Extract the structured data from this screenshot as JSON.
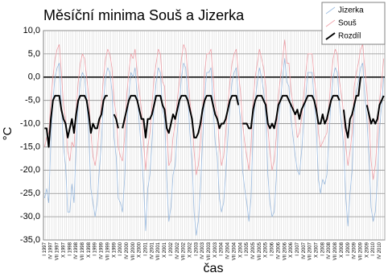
{
  "chart_data": {
    "type": "line",
    "title": "Měsíční minima Souš a Jizerka",
    "x_label": "čas",
    "y_label": "°C",
    "categories": [
      "I 1997",
      null,
      null,
      "IV 1997",
      null,
      null,
      "VII 1997",
      null,
      null,
      "X 1997",
      null,
      null,
      "I 1998",
      null,
      null,
      "IV 1998",
      null,
      null,
      "VII 1998",
      null,
      null,
      "X 1998",
      null,
      null,
      "I 1999",
      null,
      null,
      "IV 1999",
      null,
      null,
      "VII 1999",
      null,
      null,
      "X 1999",
      null,
      null,
      "I 2000",
      null,
      null,
      "IV 2000",
      null,
      null,
      "VII 2000",
      null,
      null,
      "X 2000",
      null,
      null,
      "I 2001",
      null,
      null,
      "IV 2001",
      null,
      null,
      "VII 2001",
      null,
      null,
      "X 2001",
      null,
      null,
      "I 2002",
      null,
      null,
      "IV 2002",
      null,
      null,
      "VII 2002",
      null,
      null,
      "X 2002",
      null,
      null,
      "I 2003",
      null,
      null,
      "IV 2003",
      null,
      null,
      "VII 2003",
      null,
      null,
      "X 2003",
      null,
      null,
      "I 2004",
      null,
      null,
      "IV 2004",
      null,
      null,
      "VII 2004",
      null,
      null,
      "X 2004",
      null,
      null,
      "I 2005",
      null,
      null,
      "IV 2005",
      null,
      null,
      "VII 2005",
      null,
      null,
      "X 2005",
      null,
      null,
      "I 2006",
      null,
      null,
      "IV 2006",
      null,
      null,
      "VII 2006",
      null,
      null,
      "X 2006",
      null,
      null,
      "I 2007",
      null,
      null,
      "IV 2007",
      null,
      null,
      "VII 2007",
      null,
      null,
      "X 2007",
      null,
      null,
      "I 2008",
      null,
      null,
      "IV 2008",
      null,
      null,
      "VII 2008",
      null,
      null,
      "X 2008",
      null,
      null,
      "I 2009",
      null,
      null,
      "IV 2009",
      null,
      null,
      "VII 2009",
      null,
      null,
      "X 2009",
      null,
      null,
      "I 2010",
      null,
      null,
      "IV 2010",
      null,
      null
    ],
    "series": [
      {
        "name": "Jizerka",
        "color": "#9bbbe0",
        "values": [
          -26,
          -24,
          -27,
          -14,
          -5,
          0,
          2,
          3,
          -6,
          -15,
          -19,
          -29,
          -29,
          -23,
          -27,
          -15,
          -6,
          -1,
          1,
          0,
          -5,
          -12,
          -24,
          -27,
          -30,
          -27,
          -20,
          -14,
          -5,
          0,
          2,
          1,
          -3,
          -13,
          -17,
          -26,
          -27,
          -29,
          -22,
          -11,
          -4,
          1,
          0,
          2,
          -4,
          -10,
          -16,
          -23,
          -33,
          -24,
          -21,
          -14,
          -6,
          -1,
          2,
          1,
          -7,
          -9,
          -22,
          -31,
          -28,
          -21,
          -19,
          -12,
          -6,
          0,
          3,
          2,
          -4,
          -12,
          -18,
          -29,
          -34,
          -31,
          -24,
          -14,
          -4,
          1,
          1,
          2,
          -6,
          -14,
          -17,
          -26,
          -29,
          -27,
          -21,
          -13,
          -6,
          -1,
          1,
          2,
          -5,
          -9,
          -20,
          -24,
          -27,
          -31,
          -26,
          -12,
          -5,
          -1,
          2,
          0,
          -3,
          -8,
          -21,
          -27,
          -30,
          -29,
          -22,
          -10,
          -5,
          0,
          4,
          -1,
          -2,
          -9,
          -13,
          -17,
          -20,
          -21,
          -16,
          -10,
          -4,
          1,
          1,
          1,
          -5,
          -11,
          -22,
          -25,
          -22,
          -23,
          -21,
          -13,
          -5,
          0,
          2,
          1,
          -6,
          -10,
          -15,
          -26,
          -32,
          -25,
          -20,
          -8,
          -3,
          -1,
          2,
          3,
          -4,
          -9,
          -17,
          -28,
          -31,
          -29,
          -22,
          -11,
          -6,
          0
        ]
      },
      {
        "name": "Souš",
        "color": "#f0a0a8",
        "values": [
          -15,
          -13,
          -12,
          -5,
          0,
          4,
          6,
          7,
          1,
          -6,
          -9,
          -16,
          -18,
          -14,
          -15,
          -7,
          -1,
          3,
          5,
          4,
          0,
          -4,
          -12,
          -17,
          -19,
          -16,
          -11,
          -6,
          0,
          4,
          6,
          5,
          2,
          -5,
          -8,
          -15,
          -17,
          -18,
          -13,
          -4,
          1,
          5,
          4,
          6,
          1,
          -3,
          -7,
          -14,
          -20,
          -15,
          -12,
          -6,
          0,
          3,
          6,
          5,
          -1,
          -2,
          -11,
          -19,
          -18,
          -13,
          -10,
          -5,
          -1,
          4,
          7,
          6,
          1,
          -5,
          -9,
          -16,
          -21,
          -19,
          -14,
          -7,
          1,
          5,
          5,
          6,
          0,
          -6,
          -8,
          -15,
          -19,
          -17,
          -12,
          -6,
          -1,
          3,
          5,
          6,
          1,
          -3,
          -10,
          -14,
          -17,
          -20,
          -15,
          -5,
          0,
          3,
          6,
          4,
          2,
          -2,
          -11,
          -16,
          -20,
          -18,
          -13,
          -4,
          0,
          4,
          8,
          3,
          3,
          -3,
          -6,
          -9,
          -13,
          -12,
          -9,
          -4,
          1,
          5,
          5,
          5,
          0,
          -4,
          -12,
          -15,
          -14,
          -13,
          -12,
          -6,
          0,
          4,
          6,
          5,
          -1,
          -4,
          -8,
          -15,
          -19,
          -16,
          -12,
          -2,
          1,
          3,
          6,
          7,
          2,
          -3,
          -9,
          -18,
          -22,
          -19,
          -13,
          -5,
          -1,
          4
        ]
      },
      {
        "name": "Rozdíl",
        "color": "#000000",
        "values": [
          -11,
          -11,
          -15,
          -9,
          -5,
          -4,
          -4,
          -4,
          -7,
          -9,
          -10,
          -13,
          -11,
          -9,
          -12,
          -8,
          -5,
          -4,
          -4,
          -4,
          -5,
          -8,
          -12,
          -10,
          -11,
          -11,
          -9,
          -8,
          -5,
          -4,
          -4,
          null,
          null,
          -8,
          -9,
          -11,
          null,
          -11,
          -9,
          -7,
          -5,
          -4,
          -4,
          -4,
          -5,
          -7,
          -9,
          -9,
          -13,
          -9,
          -9,
          -8,
          -6,
          -4,
          -4,
          -4,
          -6,
          -7,
          -11,
          -12,
          -10,
          -8,
          -9,
          -7,
          -5,
          -4,
          -4,
          -4,
          -5,
          -7,
          -9,
          -13,
          -13,
          -12,
          -10,
          -7,
          -5,
          -4,
          -4,
          -4,
          -6,
          -8,
          -9,
          -11,
          -10,
          -10,
          -9,
          -7,
          -5,
          -4,
          -4,
          -4,
          -6,
          null,
          -10,
          -10,
          -10,
          -11,
          -11,
          -7,
          -5,
          -4,
          -4,
          -4,
          -5,
          -6,
          -10,
          -11,
          -10,
          -11,
          -9,
          -6,
          -5,
          -4,
          -4,
          -4,
          -5,
          -6,
          -7,
          -8,
          -7,
          -9,
          -7,
          -6,
          -5,
          -4,
          -4,
          -4,
          -5,
          -7,
          -10,
          -10,
          -8,
          -10,
          -9,
          -7,
          -5,
          -4,
          -4,
          -4,
          -5,
          null,
          -7,
          -11,
          -13,
          -9,
          -8,
          -6,
          -4,
          -4,
          0,
          null,
          null,
          -6,
          -8,
          -10,
          -9,
          -10,
          -9,
          -6,
          -5,
          -4
        ]
      }
    ],
    "ylim": [
      -35,
      10
    ],
    "yticks": [
      {
        "value": 10,
        "label": "10,0"
      },
      {
        "value": 5,
        "label": "5,0"
      },
      {
        "value": 0,
        "label": "0,0"
      },
      {
        "value": -5,
        "label": "-5,0"
      },
      {
        "value": -10,
        "label": "-10,0"
      },
      {
        "value": -15,
        "label": "-15,0"
      },
      {
        "value": -20,
        "label": "-20,0"
      },
      {
        "value": -25,
        "label": "-25,0"
      },
      {
        "value": -30,
        "label": "-30,0"
      },
      {
        "value": -35,
        "label": "-35,0"
      }
    ],
    "grid": true,
    "legend": "upper right"
  }
}
